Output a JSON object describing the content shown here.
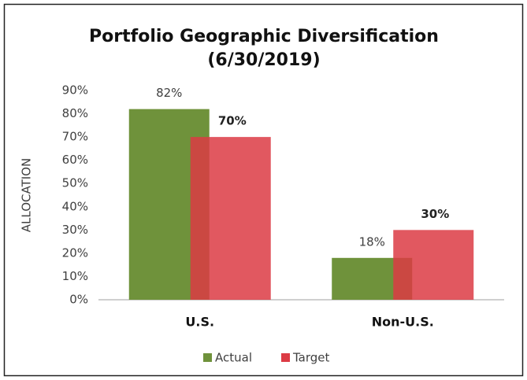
{
  "chart_data": {
    "type": "bar",
    "title": [
      "Portfolio Geographic Diversification",
      "(6/30/2019)"
    ],
    "y_label": "ALLOCATION",
    "categories": [
      "U.S.",
      "Non-U.S."
    ],
    "series": [
      {
        "name": "Actual",
        "color": "#6f923b",
        "values": [
          82,
          18
        ],
        "value_labels": [
          "82%",
          "18%"
        ]
      },
      {
        "name": "Target",
        "color": "#dc3b44",
        "values": [
          70,
          30
        ],
        "value_labels": [
          "70%",
          "30%"
        ]
      }
    ],
    "ylim": [
      0,
      90
    ],
    "yticks": [
      {
        "value": 0,
        "label": "0%"
      },
      {
        "value": 10,
        "label": "10%"
      },
      {
        "value": 20,
        "label": "20%"
      },
      {
        "value": 30,
        "label": "30%"
      },
      {
        "value": 40,
        "label": "40%"
      },
      {
        "value": 50,
        "label": "50%"
      },
      {
        "value": 60,
        "label": "60%"
      },
      {
        "value": 70,
        "label": "70%"
      },
      {
        "value": 80,
        "label": "80%"
      },
      {
        "value": 90,
        "label": "90%"
      }
    ],
    "grid": false,
    "legend": "bottom"
  }
}
